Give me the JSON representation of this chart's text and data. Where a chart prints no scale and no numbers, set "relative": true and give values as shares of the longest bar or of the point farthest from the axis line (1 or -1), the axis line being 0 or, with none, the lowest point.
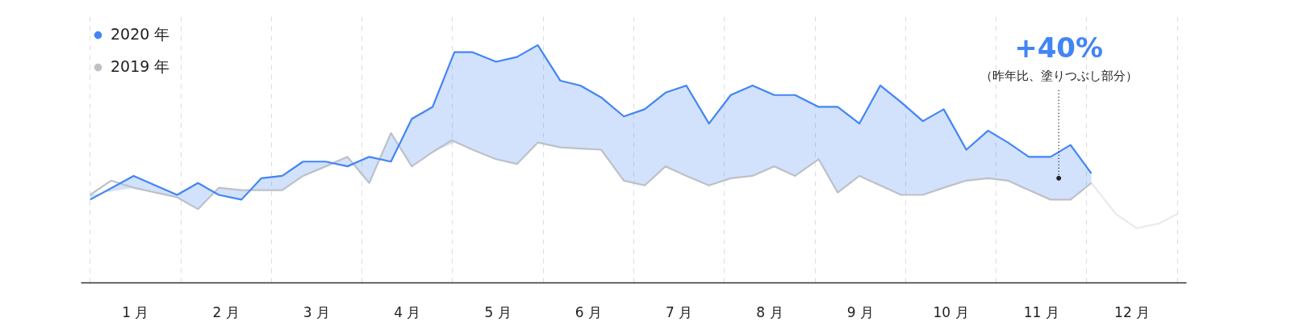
{
  "chart_data": {
    "type": "line",
    "relative": true,
    "legend": "top left",
    "grid": "x",
    "line_style": "solid",
    "marker": "none",
    "xlim": [
      -0.1,
      12.1
    ],
    "xticks": [
      {
        "value": 0,
        "label": null
      },
      {
        "value": 0.5,
        "label": "1 月"
      },
      {
        "value": 1,
        "label": null
      },
      {
        "value": 1.5,
        "label": "2 月"
      },
      {
        "value": 2,
        "label": null
      },
      {
        "value": 2.5,
        "label": "3 月"
      },
      {
        "value": 3,
        "label": null
      },
      {
        "value": 3.5,
        "label": "4 月"
      },
      {
        "value": 4,
        "label": null
      },
      {
        "value": 4.5,
        "label": "5 月"
      },
      {
        "value": 5,
        "label": null
      },
      {
        "value": 5.5,
        "label": "6 月"
      },
      {
        "value": 6,
        "label": null
      },
      {
        "value": 6.5,
        "label": "7 月"
      },
      {
        "value": 7,
        "label": null
      },
      {
        "value": 7.5,
        "label": "8 月"
      },
      {
        "value": 8,
        "label": null
      },
      {
        "value": 8.5,
        "label": "9 月"
      },
      {
        "value": 9,
        "label": null
      },
      {
        "value": 9.5,
        "label": "10 月"
      },
      {
        "value": 10,
        "label": null
      },
      {
        "value": 10.5,
        "label": "11 月"
      },
      {
        "value": 11,
        "label": null
      },
      {
        "value": 11.5,
        "label": "12 月"
      },
      {
        "value": 12,
        "label": null
      }
    ],
    "series": [
      {
        "name": "2020 年",
        "color": "#4285f4",
        "x": [
          0,
          0.48,
          0.96,
          1.19,
          1.42,
          1.67,
          1.89,
          2.12,
          2.35,
          2.6,
          2.84,
          3.08,
          3.32,
          3.55,
          3.78,
          4.02,
          4.22,
          4.48,
          4.71,
          4.94,
          5.19,
          5.41,
          5.64,
          5.89,
          6.12,
          6.35,
          6.58,
          6.83,
          7.07,
          7.31,
          7.55,
          7.78,
          8.04,
          8.25,
          8.49,
          8.72,
          8.95,
          9.19,
          9.42,
          9.67,
          9.91,
          10.13,
          10.36,
          10.6,
          10.82,
          11.05
        ],
        "values": [
          0.35,
          0.45,
          0.37,
          0.42,
          0.37,
          0.35,
          0.44,
          0.45,
          0.51,
          0.51,
          0.49,
          0.53,
          0.51,
          0.69,
          0.74,
          0.97,
          0.97,
          0.93,
          0.95,
          1,
          0.85,
          0.83,
          0.78,
          0.7,
          0.73,
          0.8,
          0.83,
          0.67,
          0.79,
          0.83,
          0.79,
          0.79,
          0.74,
          0.74,
          0.67,
          0.83,
          0.76,
          0.68,
          0.73,
          0.56,
          0.64,
          0.59,
          0.53,
          0.53,
          0.58,
          0.46
        ],
        "upper": [
          0.35,
          0.45,
          0.37,
          0.42,
          0.37,
          0.35,
          0.44,
          0.45,
          0.51,
          0.51,
          0.49,
          0.53,
          0.51,
          0.69,
          0.74,
          0.97,
          0.97,
          0.93,
          0.95,
          1,
          0.85,
          0.83,
          0.78,
          0.7,
          0.73,
          0.8,
          0.83,
          0.67,
          0.79,
          0.83,
          0.79,
          0.79,
          0.74,
          0.74,
          0.67,
          0.83,
          0.76,
          0.68,
          0.73,
          0.56,
          0.64,
          0.59,
          0.53,
          0.53,
          0.58,
          0.46
        ],
        "lower": [
          0.37,
          0.4,
          0.36,
          0.31,
          0.4,
          0.39,
          0.39,
          0.39,
          0.45,
          0.49,
          0.53,
          0.42,
          0.63,
          0.49,
          0.55,
          0.59,
          0.56,
          0.52,
          0.5,
          0.59,
          0.57,
          0.56,
          0.56,
          0.43,
          0.41,
          0.49,
          0.45,
          0.41,
          0.44,
          0.45,
          0.49,
          0.45,
          0.52,
          0.38,
          0.45,
          0.41,
          0.37,
          0.37,
          0.4,
          0.43,
          0.44,
          0.43,
          0.39,
          0.35,
          0.35,
          0.42
        ]
      },
      {
        "name": "2019 年",
        "color": "#bdc1c6",
        "x": [
          0,
          0.23,
          0.48,
          0.96,
          1.19,
          1.42,
          1.67,
          2.12,
          2.35,
          2.6,
          2.84,
          3.08,
          3.32,
          3.55,
          3.78,
          3.99,
          4.22,
          4.48,
          4.71,
          4.94,
          5.19,
          5.64,
          5.89,
          6.12,
          6.35,
          6.58,
          6.83,
          7.07,
          7.31,
          7.55,
          7.78,
          8.04,
          8.25,
          8.49,
          8.72,
          8.95,
          9.19,
          9.42,
          9.67,
          9.91,
          10.13,
          10.36,
          10.6,
          10.82,
          11.05
        ],
        "values": [
          0.37,
          0.43,
          0.4,
          0.36,
          0.31,
          0.4,
          0.39,
          0.39,
          0.45,
          0.49,
          0.53,
          0.42,
          0.63,
          0.49,
          0.55,
          0.6,
          0.56,
          0.52,
          0.5,
          0.59,
          0.57,
          0.56,
          0.43,
          0.41,
          0.49,
          0.45,
          0.41,
          0.44,
          0.45,
          0.49,
          0.45,
          0.52,
          0.38,
          0.45,
          0.41,
          0.37,
          0.37,
          0.4,
          0.43,
          0.44,
          0.43,
          0.39,
          0.35,
          0.35,
          0.42
        ]
      },
      {
        "color": "#e8eaed",
        "x": [
          11.05,
          11.32,
          11.55,
          11.8,
          12
        ],
        "values": [
          0.42,
          0.29,
          0.23,
          0.25,
          0.29
        ]
      }
    ],
    "annotations": [
      {
        "text": "+40%",
        "x": 10.69,
        "y": 0.44
      },
      "（昨年比、塗りつぶし部分）"
    ]
  }
}
